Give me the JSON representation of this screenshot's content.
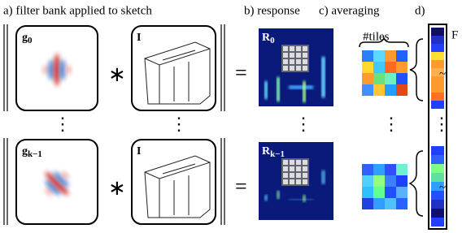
{
  "header": {
    "a": "a) filter bank applied to sketch",
    "b": "b) response",
    "c": "c) averaging",
    "d": "d)"
  },
  "rows": [
    {
      "filter": "g",
      "filter_sub": "0",
      "image": "I",
      "response": "R",
      "response_sub": "0"
    },
    {
      "filter": "g",
      "filter_sub": "k−1",
      "image": "I",
      "response": "R",
      "response_sub": "k−1"
    }
  ],
  "operators": {
    "convolve": "∗",
    "equals": "="
  },
  "ellipsis": "⋮",
  "tiles_label": "#tiles",
  "feature_label": "F",
  "tilde": "~"
}
